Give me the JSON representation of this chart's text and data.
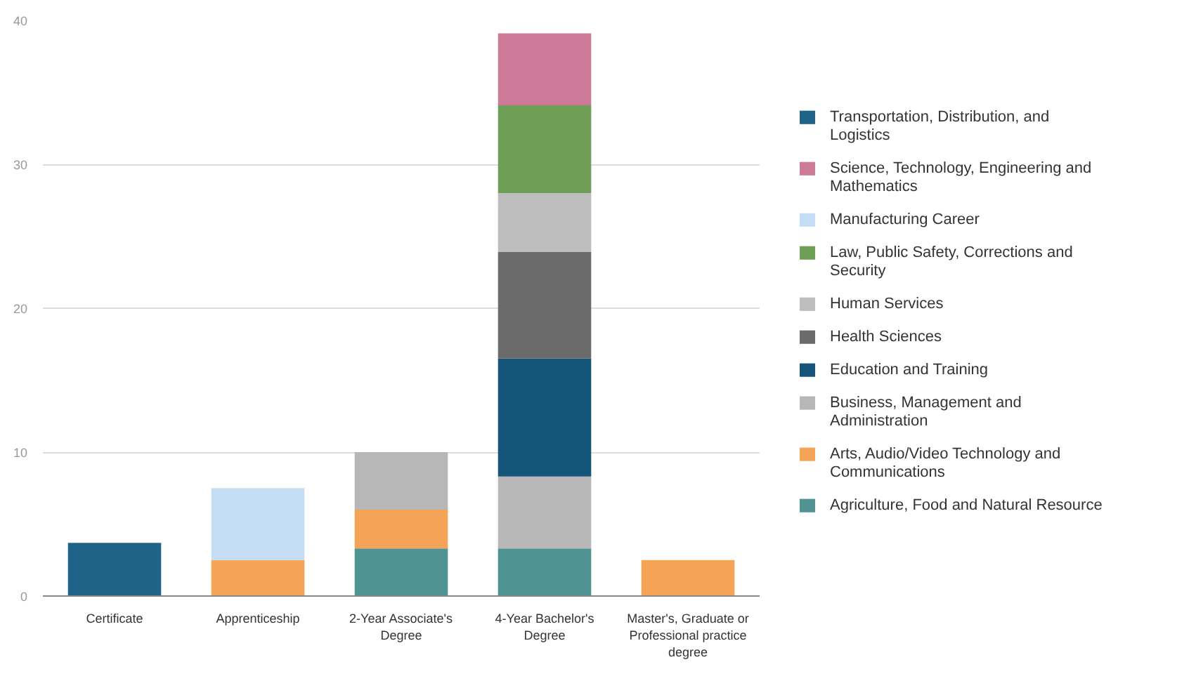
{
  "chart_data": {
    "type": "bar",
    "stacked": true,
    "categories": [
      "Certificate",
      "Apprenticeship",
      "2-Year Associate's Degree",
      "4-Year Bachelor's Degree",
      "Master's, Graduate or Professional practice degree"
    ],
    "series": [
      {
        "name": "Agriculture, Food and Natural Resource",
        "color": "#4f9393",
        "values": [
          null,
          null,
          3.3,
          3.3,
          null
        ]
      },
      {
        "name": "Arts, Audio/Video Technology and Communications",
        "color": "#f5a356",
        "values": [
          null,
          2.5,
          2.7,
          null,
          2.5
        ]
      },
      {
        "name": "Business, Management and Administration",
        "color": "#b7b7b7",
        "values": [
          null,
          null,
          4.0,
          5.0,
          null
        ]
      },
      {
        "name": "Education and Training",
        "color": "#15557a",
        "values": [
          null,
          null,
          null,
          8.2,
          null
        ]
      },
      {
        "name": "Health Sciences",
        "color": "#6b6b6b",
        "values": [
          null,
          null,
          null,
          7.4,
          null
        ]
      },
      {
        "name": "Human Services",
        "color": "#bdbdbd",
        "values": [
          null,
          null,
          null,
          4.1,
          null
        ]
      },
      {
        "name": "Law, Public Safety, Corrections and Security",
        "color": "#6f9e56",
        "values": [
          null,
          null,
          null,
          6.1,
          null
        ]
      },
      {
        "name": "Manufacturing Career",
        "color": "#c5ddf4",
        "values": [
          null,
          5.0,
          null,
          null,
          null
        ]
      },
      {
        "name": "Science, Technology, Engineering and Mathematics",
        "color": "#cc7a98",
        "values": [
          null,
          null,
          null,
          5.0,
          null
        ]
      },
      {
        "name": "Transportation, Distribution, and Logistics",
        "color": "#1f6389",
        "values": [
          3.7,
          null,
          null,
          null,
          null
        ]
      }
    ],
    "ylim": [
      0,
      40
    ],
    "yticks": [
      0,
      10,
      20,
      30,
      40
    ],
    "grid": "y",
    "legend": "right"
  }
}
